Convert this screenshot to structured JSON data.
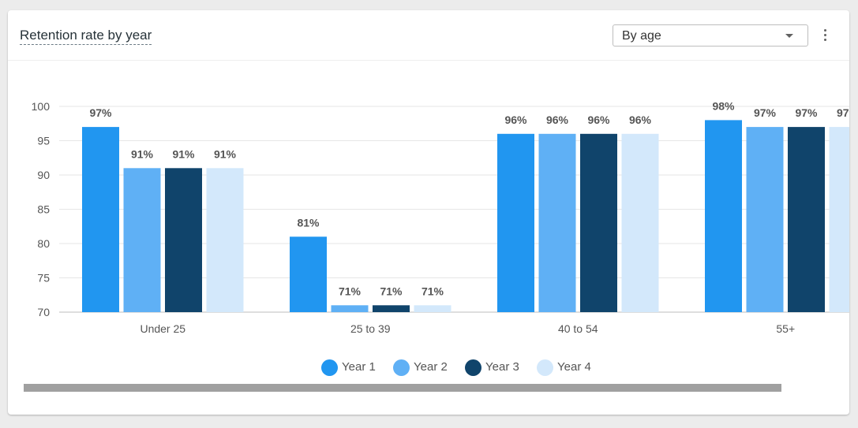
{
  "header": {
    "title": "Retention rate by year",
    "dropdown_value": "By age"
  },
  "colors": {
    "year1": "#2196f0",
    "year2": "#5fb0f5",
    "year3": "#10446b",
    "year4": "#d3e8fb"
  },
  "chart_data": {
    "type": "bar",
    "title": "Retention rate by year",
    "xlabel": "",
    "ylabel": "",
    "ylim": [
      70,
      100
    ],
    "yticks": [
      70,
      75,
      80,
      85,
      90,
      95,
      100
    ],
    "grid": true,
    "legend_position": "bottom",
    "categories": [
      "Under 25",
      "25 to 39",
      "40 to 54",
      "55+"
    ],
    "series": [
      {
        "name": "Year 1",
        "color": "#2196f0",
        "values": [
          97,
          81,
          96,
          98
        ]
      },
      {
        "name": "Year 2",
        "color": "#5fb0f5",
        "values": [
          91,
          71,
          96,
          97
        ]
      },
      {
        "name": "Year 3",
        "color": "#10446b",
        "values": [
          91,
          71,
          96,
          97
        ]
      },
      {
        "name": "Year 4",
        "color": "#d3e8fb",
        "values": [
          91,
          71,
          96,
          97
        ]
      }
    ],
    "value_suffix": "%"
  }
}
